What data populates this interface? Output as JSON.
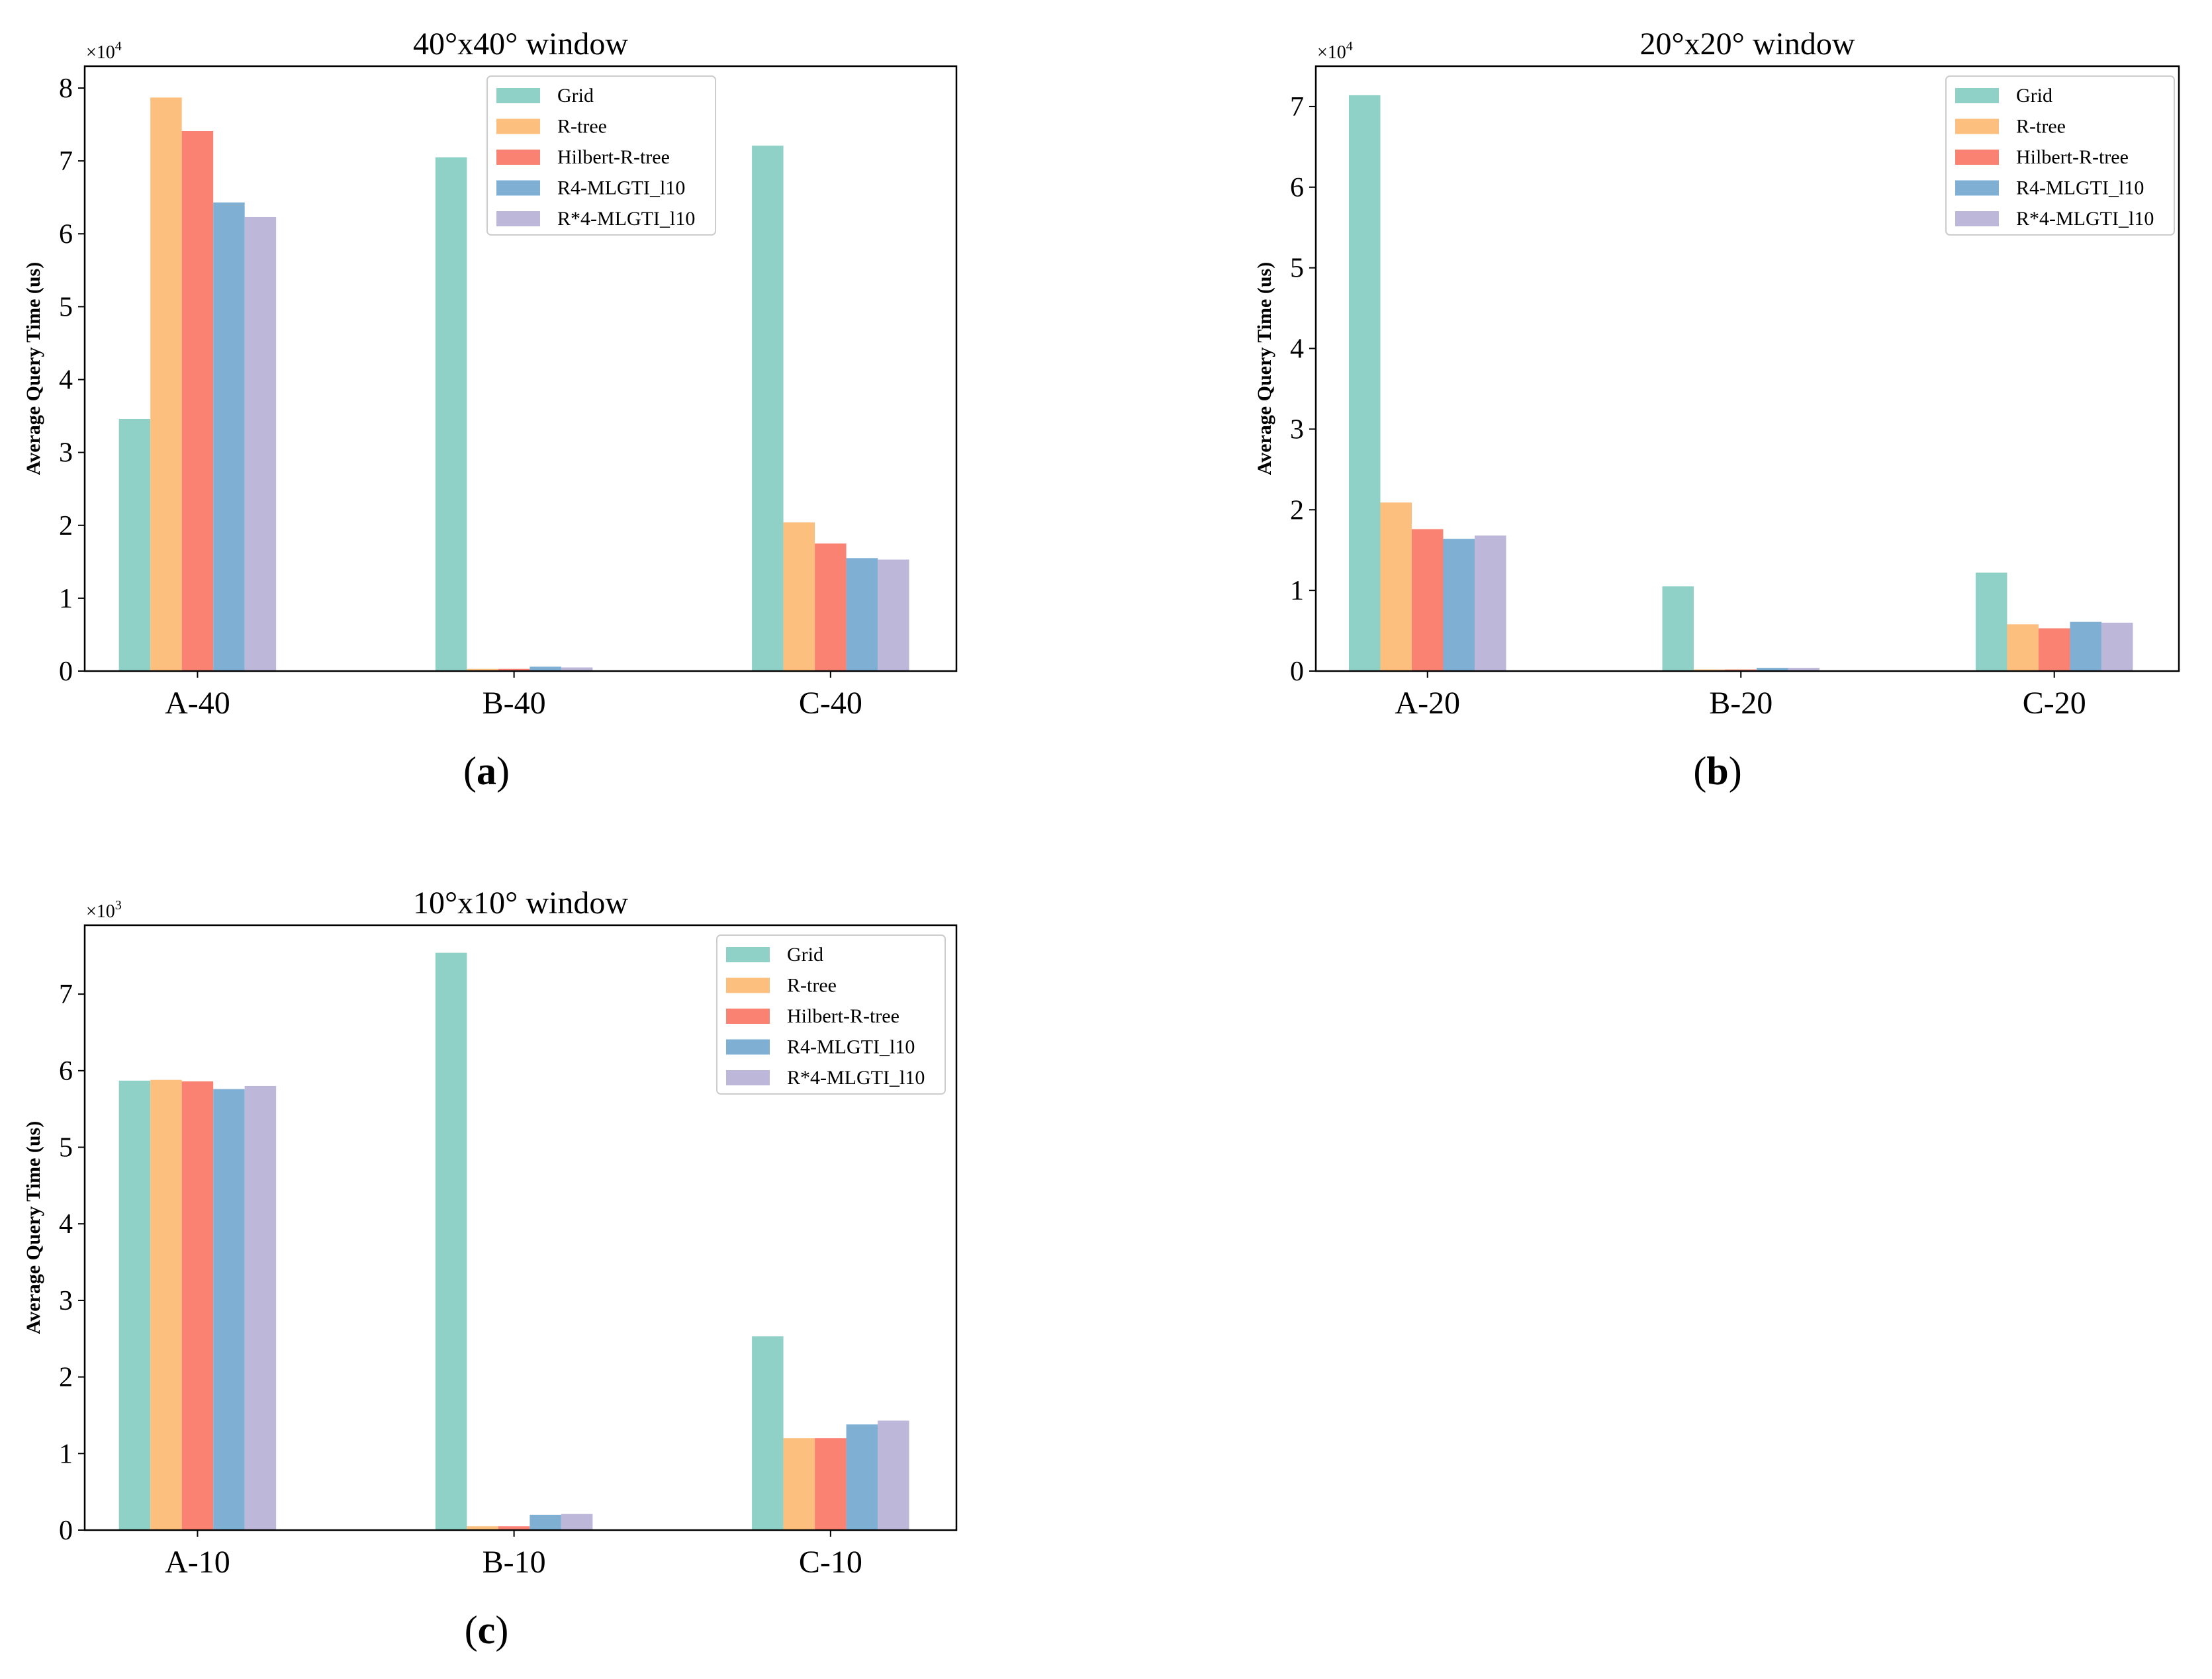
{
  "colors": {
    "Grid": "#8fd1c7",
    "R-tree": "#fdbf7e",
    "Hilbert-R-tree": "#f98272",
    "R4-MLGTI_l10": "#7fb0d4",
    "R*4-MLGTI_l10": "#bdb7da"
  },
  "chart_data": [
    {
      "type": "bar",
      "panel": "(a)",
      "panel_parts": {
        "open": "(",
        "letter": "a",
        "close": ")"
      },
      "title": "40°x40° window",
      "xlabel": "",
      "ylabel": "Average Query Time (us)",
      "multiplier_base": "×10",
      "multiplier_exp": "4",
      "scale": 10000,
      "ylim": [
        0,
        8.3
      ],
      "yticks": [
        "0",
        "1",
        "2",
        "3",
        "4",
        "5",
        "6",
        "7",
        "8"
      ],
      "legend_position": "upper right-center",
      "categories": [
        "A-40",
        "B-40",
        "C-40"
      ],
      "series": [
        {
          "name": "Grid",
          "values": [
            3.46,
            7.05,
            7.21
          ]
        },
        {
          "name": "R-tree",
          "values": [
            7.87,
            0.03,
            2.04
          ]
        },
        {
          "name": "Hilbert-R-tree",
          "values": [
            7.41,
            0.03,
            1.75
          ]
        },
        {
          "name": "R4-MLGTI_l10",
          "values": [
            6.43,
            0.06,
            1.55
          ]
        },
        {
          "name": "R*4-MLGTI_l10",
          "values": [
            6.23,
            0.05,
            1.53
          ]
        }
      ]
    },
    {
      "type": "bar",
      "panel": "(b)",
      "panel_parts": {
        "open": "(",
        "letter": "b",
        "close": ")"
      },
      "title": "20°x20° window",
      "xlabel": "",
      "ylabel": "Average Query Time (us)",
      "multiplier_base": "×10",
      "multiplier_exp": "4",
      "scale": 10000,
      "ylim": [
        0,
        7.5
      ],
      "yticks": [
        "0",
        "1",
        "2",
        "3",
        "4",
        "5",
        "6",
        "7"
      ],
      "legend_position": "upper right",
      "categories": [
        "A-20",
        "B-20",
        "C-20"
      ],
      "series": [
        {
          "name": "Grid",
          "values": [
            7.14,
            1.05,
            1.22
          ]
        },
        {
          "name": "R-tree",
          "values": [
            2.09,
            0.02,
            0.58
          ]
        },
        {
          "name": "Hilbert-R-tree",
          "values": [
            1.76,
            0.02,
            0.53
          ]
        },
        {
          "name": "R4-MLGTI_l10",
          "values": [
            1.64,
            0.04,
            0.61
          ]
        },
        {
          "name": "R*4-MLGTI_l10",
          "values": [
            1.68,
            0.04,
            0.6
          ]
        }
      ]
    },
    {
      "type": "bar",
      "panel": "(c)",
      "panel_parts": {
        "open": "(",
        "letter": "c",
        "close": ")"
      },
      "title": "10°x10° window",
      "xlabel": "",
      "ylabel": "Average Query Time (us)",
      "multiplier_base": "×10",
      "multiplier_exp": "3",
      "scale": 1000,
      "ylim": [
        0,
        7.9
      ],
      "yticks": [
        "0",
        "1",
        "2",
        "3",
        "4",
        "5",
        "6",
        "7"
      ],
      "legend_position": "upper right",
      "categories": [
        "A-10",
        "B-10",
        "C-10"
      ],
      "series": [
        {
          "name": "Grid",
          "values": [
            5.87,
            7.54,
            2.53
          ]
        },
        {
          "name": "R-tree",
          "values": [
            5.88,
            0.05,
            1.2
          ]
        },
        {
          "name": "Hilbert-R-tree",
          "values": [
            5.86,
            0.05,
            1.2
          ]
        },
        {
          "name": "R4-MLGTI_l10",
          "values": [
            5.76,
            0.2,
            1.38
          ]
        },
        {
          "name": "R*4-MLGTI_l10",
          "values": [
            5.8,
            0.21,
            1.43
          ]
        }
      ]
    }
  ]
}
